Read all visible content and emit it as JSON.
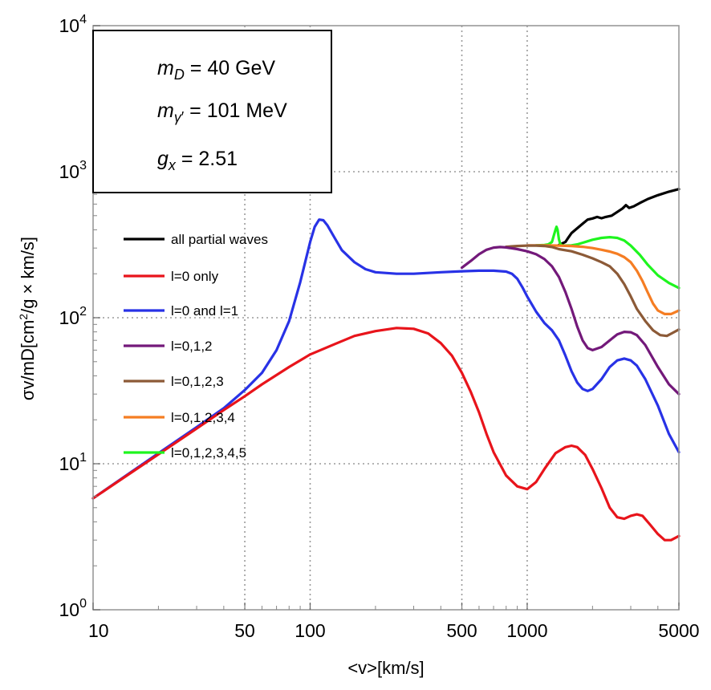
{
  "chart_data": {
    "type": "line",
    "xscale": "log",
    "yscale": "log",
    "xlim": [
      10,
      5000
    ],
    "ylim": [
      1,
      10000
    ],
    "xlabel": "<v>[km/s]",
    "ylabel_parts": {
      "main": "σv/mD[cm",
      "sup": "2",
      "rest": "/g × km/s]"
    },
    "x_ticks": [
      {
        "value": 10,
        "label": "10"
      },
      {
        "value": 50,
        "label": "50"
      },
      {
        "value": 100,
        "label": "100"
      },
      {
        "value": 500,
        "label": "500"
      },
      {
        "value": 1000,
        "label": "1000"
      },
      {
        "value": 5000,
        "label": "5000"
      }
    ],
    "y_ticks": [
      {
        "value": 1,
        "base": "10",
        "exp": "0"
      },
      {
        "value": 10,
        "base": "10",
        "exp": "1"
      },
      {
        "value": 100,
        "base": "10",
        "exp": "2"
      },
      {
        "value": 1000,
        "base": "10",
        "exp": "3"
      },
      {
        "value": 10000,
        "base": "10",
        "exp": "4"
      }
    ],
    "x_gridlines": [
      50,
      100,
      500,
      1000
    ],
    "y_gridlines": [
      10,
      100,
      1000
    ],
    "legend_position": "left",
    "parameters": [
      {
        "sym": "m",
        "sub": "D",
        "subprime": "",
        "rest": " = 40 GeV"
      },
      {
        "sym": "m",
        "sub": "γ",
        "subprime": "′",
        "rest": " = 101 MeV"
      },
      {
        "sym": "g",
        "sub": "x",
        "subprime": "",
        "rest": " = 2.51"
      }
    ],
    "series": [
      {
        "name": "all partial waves",
        "color": "#000000",
        "points": [
          [
            1400,
            315
          ],
          [
            1500,
            330
          ],
          [
            1550,
            355
          ],
          [
            1600,
            380
          ],
          [
            1700,
            410
          ],
          [
            1800,
            440
          ],
          [
            1900,
            470
          ],
          [
            2000,
            478
          ],
          [
            2100,
            490
          ],
          [
            2200,
            480
          ],
          [
            2300,
            490
          ],
          [
            2450,
            500
          ],
          [
            2600,
            530
          ],
          [
            2750,
            560
          ],
          [
            2850,
            590
          ],
          [
            2950,
            565
          ],
          [
            3100,
            580
          ],
          [
            3300,
            610
          ],
          [
            3600,
            650
          ],
          [
            4000,
            690
          ],
          [
            4500,
            730
          ],
          [
            5000,
            760
          ]
        ]
      },
      {
        "name": "l=0 only",
        "color": "#e8141b",
        "points": [
          [
            10,
            5.8
          ],
          [
            15,
            8.7
          ],
          [
            20,
            11.6
          ],
          [
            30,
            17.4
          ],
          [
            40,
            23.3
          ],
          [
            50,
            29
          ],
          [
            60,
            35
          ],
          [
            80,
            46
          ],
          [
            100,
            56
          ],
          [
            130,
            66
          ],
          [
            160,
            75
          ],
          [
            200,
            81
          ],
          [
            250,
            85
          ],
          [
            300,
            84
          ],
          [
            350,
            78
          ],
          [
            400,
            67
          ],
          [
            450,
            55
          ],
          [
            500,
            42
          ],
          [
            550,
            31
          ],
          [
            600,
            22.5
          ],
          [
            650,
            16
          ],
          [
            700,
            12
          ],
          [
            800,
            8.3
          ],
          [
            900,
            7.0
          ],
          [
            1000,
            6.7
          ],
          [
            1100,
            7.5
          ],
          [
            1200,
            9.2
          ],
          [
            1350,
            11.8
          ],
          [
            1500,
            13.0
          ],
          [
            1600,
            13.3
          ],
          [
            1700,
            13.0
          ],
          [
            1850,
            11.5
          ],
          [
            2000,
            9.2
          ],
          [
            2200,
            6.8
          ],
          [
            2400,
            5.0
          ],
          [
            2600,
            4.3
          ],
          [
            2800,
            4.2
          ],
          [
            3000,
            4.4
          ],
          [
            3200,
            4.5
          ],
          [
            3400,
            4.4
          ],
          [
            3700,
            3.8
          ],
          [
            4000,
            3.3
          ],
          [
            4300,
            3.0
          ],
          [
            4600,
            3.0
          ],
          [
            5000,
            3.2
          ]
        ]
      },
      {
        "name": "l=0 and l=1",
        "color": "#2832e6",
        "points": [
          [
            10,
            5.8
          ],
          [
            20,
            11.8
          ],
          [
            30,
            17.8
          ],
          [
            40,
            24
          ],
          [
            50,
            32
          ],
          [
            60,
            42
          ],
          [
            70,
            60
          ],
          [
            80,
            95
          ],
          [
            90,
            175
          ],
          [
            100,
            330
          ],
          [
            105,
            420
          ],
          [
            110,
            470
          ],
          [
            115,
            465
          ],
          [
            120,
            430
          ],
          [
            130,
            350
          ],
          [
            140,
            290
          ],
          [
            160,
            240
          ],
          [
            180,
            215
          ],
          [
            200,
            205
          ],
          [
            250,
            200
          ],
          [
            300,
            200
          ],
          [
            400,
            205
          ],
          [
            500,
            208
          ],
          [
            600,
            210
          ],
          [
            700,
            210
          ],
          [
            800,
            207
          ],
          [
            850,
            200
          ],
          [
            900,
            185
          ],
          [
            950,
            162
          ],
          [
            1000,
            140
          ],
          [
            1100,
            110
          ],
          [
            1200,
            92
          ],
          [
            1300,
            82
          ],
          [
            1400,
            70
          ],
          [
            1500,
            55
          ],
          [
            1600,
            43
          ],
          [
            1700,
            36
          ],
          [
            1800,
            32.5
          ],
          [
            1900,
            31.5
          ],
          [
            2000,
            32.5
          ],
          [
            2200,
            38
          ],
          [
            2400,
            46
          ],
          [
            2600,
            51
          ],
          [
            2800,
            52.5
          ],
          [
            3000,
            51
          ],
          [
            3200,
            47
          ],
          [
            3500,
            38
          ],
          [
            4000,
            25
          ],
          [
            4500,
            16
          ],
          [
            5000,
            12
          ]
        ]
      },
      {
        "name": "l=0,1,2",
        "color": "#73197a",
        "points": [
          [
            500,
            220
          ],
          [
            550,
            245
          ],
          [
            600,
            272
          ],
          [
            650,
            292
          ],
          [
            700,
            302
          ],
          [
            750,
            305
          ],
          [
            800,
            303
          ],
          [
            900,
            295
          ],
          [
            1000,
            285
          ],
          [
            1100,
            272
          ],
          [
            1200,
            252
          ],
          [
            1300,
            225
          ],
          [
            1400,
            190
          ],
          [
            1500,
            150
          ],
          [
            1600,
            115
          ],
          [
            1700,
            87
          ],
          [
            1800,
            70
          ],
          [
            1900,
            62
          ],
          [
            2000,
            60
          ],
          [
            2200,
            63
          ],
          [
            2400,
            70
          ],
          [
            2600,
            77
          ],
          [
            2800,
            80
          ],
          [
            3000,
            79.5
          ],
          [
            3200,
            76
          ],
          [
            3500,
            65
          ],
          [
            4000,
            46
          ],
          [
            4500,
            35
          ],
          [
            5000,
            30
          ]
        ]
      },
      {
        "name": "l=0,1,2,3",
        "color": "#8c5a37",
        "points": [
          [
            800,
            306
          ],
          [
            900,
            310
          ],
          [
            1000,
            312
          ],
          [
            1100,
            312
          ],
          [
            1200,
            310
          ],
          [
            1300,
            305
          ],
          [
            1400,
            295
          ],
          [
            1600,
            285
          ],
          [
            1800,
            270
          ],
          [
            2000,
            255
          ],
          [
            2200,
            240
          ],
          [
            2400,
            225
          ],
          [
            2600,
            200
          ],
          [
            2800,
            170
          ],
          [
            3000,
            140
          ],
          [
            3200,
            115
          ],
          [
            3500,
            95
          ],
          [
            3800,
            82
          ],
          [
            4100,
            76
          ],
          [
            4400,
            75
          ],
          [
            4700,
            79
          ],
          [
            5000,
            83
          ]
        ]
      },
      {
        "name": "l=0,1,2,3,4",
        "color": "#f57d23",
        "points": [
          [
            1000,
            313
          ],
          [
            1200,
            313
          ],
          [
            1400,
            312
          ],
          [
            1600,
            310
          ],
          [
            1800,
            306
          ],
          [
            2000,
            300
          ],
          [
            2200,
            292
          ],
          [
            2400,
            284
          ],
          [
            2600,
            274
          ],
          [
            2800,
            260
          ],
          [
            3000,
            240
          ],
          [
            3200,
            210
          ],
          [
            3400,
            178
          ],
          [
            3600,
            148
          ],
          [
            3800,
            125
          ],
          [
            4000,
            112
          ],
          [
            4300,
            106
          ],
          [
            4600,
            106
          ],
          [
            5000,
            112
          ]
        ]
      },
      {
        "name": "l=0,1,2,3,4,5",
        "color": "#1ef51e",
        "points": [
          [
            1100,
            313
          ],
          [
            1200,
            315
          ],
          [
            1250,
            318
          ],
          [
            1300,
            330
          ],
          [
            1330,
            370
          ],
          [
            1350,
            400
          ],
          [
            1365,
            420
          ],
          [
            1380,
            400
          ],
          [
            1400,
            345
          ],
          [
            1420,
            320
          ],
          [
            1450,
            313
          ],
          [
            1500,
            312
          ],
          [
            1600,
            313
          ],
          [
            1700,
            318
          ],
          [
            1800,
            326
          ],
          [
            1900,
            334
          ],
          [
            2000,
            342
          ],
          [
            2200,
            352
          ],
          [
            2400,
            356
          ],
          [
            2600,
            352
          ],
          [
            2800,
            338
          ],
          [
            3000,
            312
          ],
          [
            3300,
            270
          ],
          [
            3600,
            230
          ],
          [
            4000,
            195
          ],
          [
            4500,
            173
          ],
          [
            5000,
            160
          ]
        ]
      }
    ]
  }
}
